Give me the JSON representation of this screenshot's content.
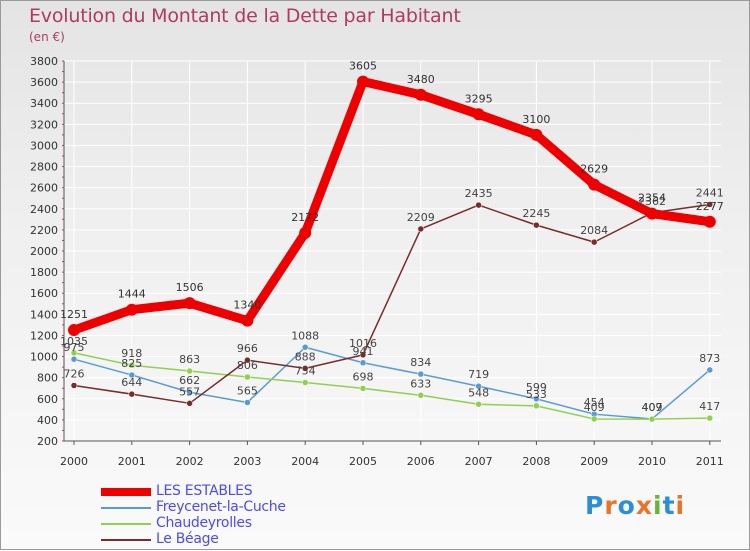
{
  "header": {
    "title": "Evolution du Montant de la Dette par Habitant",
    "subtitle": "(en €)"
  },
  "logo": {
    "text": "Proxiti",
    "letter_colors": [
      "#2a8fd8",
      "#e8742a",
      "#2a8fd8",
      "#e8742a",
      "#6ab43a",
      "#2a8fd8",
      "#e8742a"
    ]
  },
  "chart_data": {
    "type": "line",
    "title": "Evolution du Montant de la Dette par Habitant",
    "ylabel": "(en €)",
    "xlabel": "",
    "x": [
      "2000",
      "2001",
      "2002",
      "2003",
      "2004",
      "2005",
      "2006",
      "2007",
      "2008",
      "2009",
      "2010",
      "2011"
    ],
    "ylim": [
      200,
      3800
    ],
    "yticks": [
      200,
      400,
      600,
      800,
      1000,
      1200,
      1400,
      1600,
      1800,
      2000,
      2200,
      2400,
      2600,
      2800,
      3000,
      3200,
      3400,
      3600,
      3800
    ],
    "grid": true,
    "legend_position": "bottom-left",
    "series": [
      {
        "name": "LES ESTABLES",
        "color": "#ee0000",
        "values": [
          1251,
          1444,
          1506,
          1340,
          2172,
          3605,
          3480,
          3295,
          3100,
          2629,
          2354,
          2277
        ]
      },
      {
        "name": "Freycenet-la-Cuche",
        "color": "#5b9bd5",
        "values": [
          975,
          825,
          662,
          565,
          1088,
          941,
          834,
          719,
          599,
          454,
          409,
          873
        ]
      },
      {
        "name": "Chaudeyrolles",
        "color": "#8fd14f",
        "values": [
          1035,
          918,
          863,
          806,
          754,
          698,
          633,
          548,
          533,
          409,
          407,
          417
        ]
      },
      {
        "name": "Le Béage",
        "color": "#7b2b2b",
        "values": [
          726,
          644,
          557,
          966,
          888,
          1016,
          2209,
          2435,
          2245,
          2084,
          2362,
          2441
        ]
      }
    ]
  }
}
